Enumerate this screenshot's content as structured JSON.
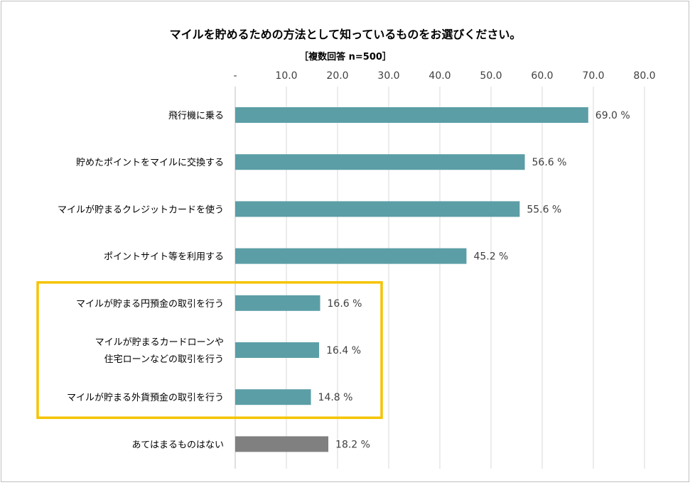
{
  "chart_data": {
    "type": "bar",
    "orientation": "horizontal",
    "title": "マイルを貯めるための方法として知っているものをお選びください。",
    "subtitle": "［複数回答 n=500］",
    "xlim": [
      0,
      80
    ],
    "ticks": [
      0,
      10,
      20,
      30,
      40,
      50,
      60,
      70,
      80
    ],
    "tick_labels": [
      "-",
      "10.0",
      "20.0",
      "30.0",
      "40.0",
      "50.0",
      "60.0",
      "70.0",
      "80.0"
    ],
    "value_suffix": " %",
    "grid": true,
    "categories": [
      [
        "飛行機に乗る"
      ],
      [
        "貯めたポイントをマイルに交換する"
      ],
      [
        "マイルが貯まるクレジットカードを使う"
      ],
      [
        "ポイントサイト等を利用する"
      ],
      [
        "マイルが貯まる円預金の取引を行う"
      ],
      [
        "マイルが貯まるカードローンや",
        "住宅ローンなどの取引を行う"
      ],
      [
        "マイルが貯まる外貨預金の取引を行う"
      ],
      [
        "あてはまるものはない"
      ]
    ],
    "values": [
      69.0,
      56.6,
      55.6,
      45.2,
      16.6,
      16.4,
      14.8,
      18.2
    ],
    "colors": [
      "#5b9ea6",
      "#5b9ea6",
      "#5b9ea6",
      "#5b9ea6",
      "#5b9ea6",
      "#5b9ea6",
      "#5b9ea6",
      "#808080"
    ],
    "highlight": {
      "from_index": 4,
      "to_index": 6,
      "color": "#f5c400"
    }
  }
}
